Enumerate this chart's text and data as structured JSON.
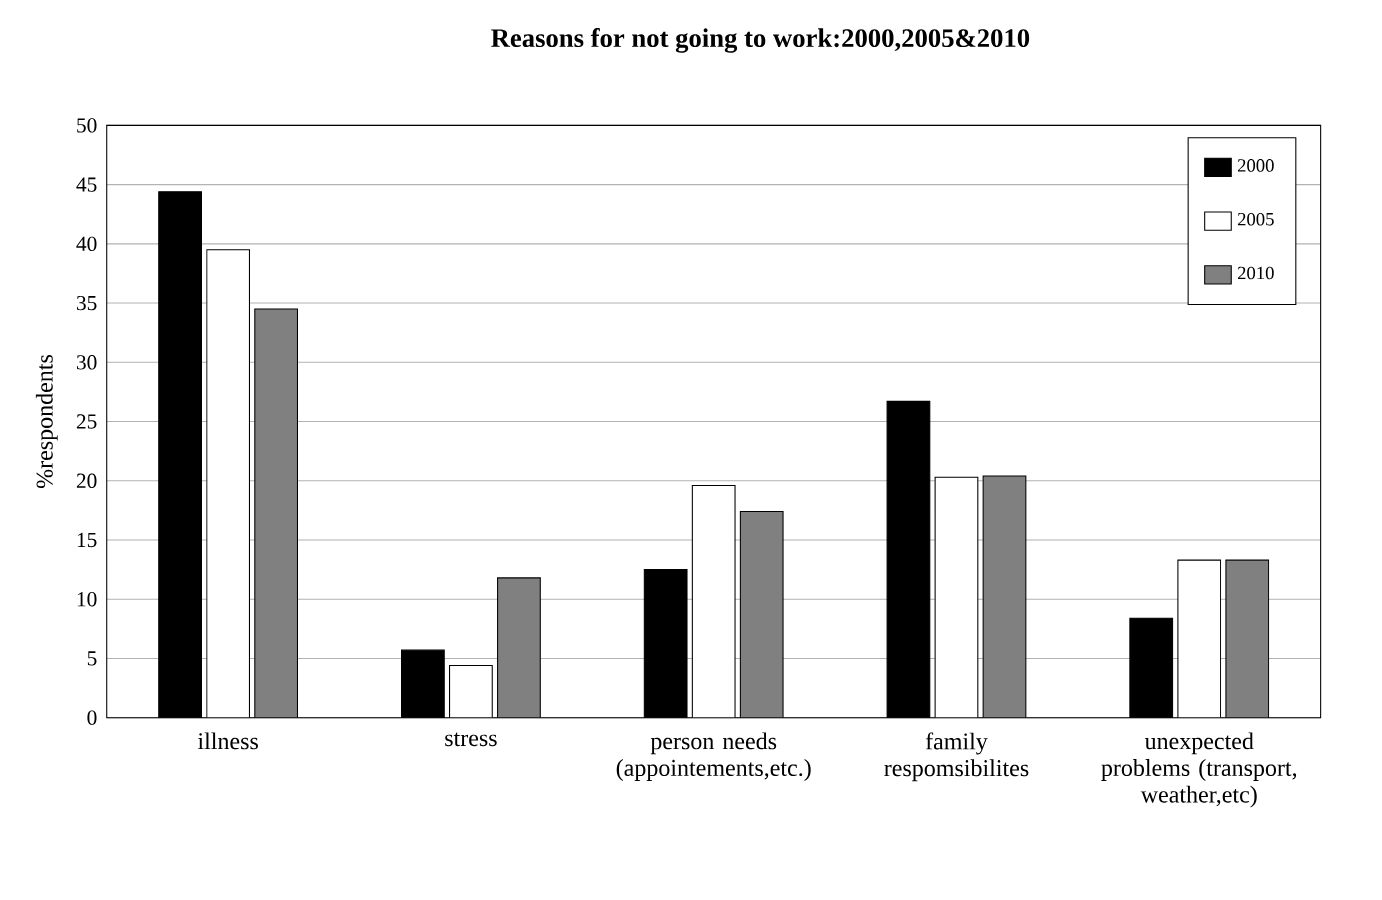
{
  "chart_data": {
    "type": "bar",
    "title": "Reasons for not going to work:2000,2005&2010",
    "ylabel": "%respondents",
    "categories": [
      "illness",
      "stress",
      "person needs (appointements,etc.)",
      "family respomsibilites",
      "unexpected problems (transport, weather,etc)"
    ],
    "series": [
      {
        "name": "2000",
        "color": "#000000",
        "values": [
          44.4,
          5.7,
          12.5,
          26.7,
          8.4
        ]
      },
      {
        "name": "2005",
        "color": "#ffffff",
        "values": [
          39.5,
          4.4,
          19.6,
          20.3,
          13.3
        ]
      },
      {
        "name": "2010",
        "color": "#808080",
        "values": [
          34.5,
          11.8,
          17.4,
          20.4,
          13.3
        ]
      }
    ],
    "ylim": [
      0,
      50
    ],
    "yticks": [
      0,
      5,
      10,
      15,
      20,
      25,
      30,
      35,
      40,
      45,
      50
    ],
    "grid": "y",
    "legend": "top right"
  }
}
